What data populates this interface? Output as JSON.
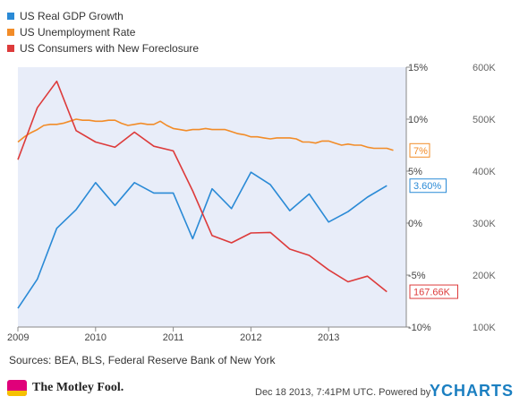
{
  "chart_data": {
    "type": "line",
    "x_ticks": [
      "2009",
      "2010",
      "2011",
      "2012",
      "2013"
    ],
    "x_range": [
      2009,
      2014.0
    ],
    "y_left_ticks": [
      "15%",
      "10%",
      "5%",
      "0%",
      "-5%",
      "-10%"
    ],
    "y_left_range": [
      -10,
      15
    ],
    "y_right_ticks": [
      "600K",
      "500K",
      "400K",
      "300K",
      "200K",
      "100K"
    ],
    "y_right_range": [
      100,
      600
    ],
    "grid": false,
    "legend_position": "top-left",
    "series": [
      {
        "name": "US Real GDP Growth",
        "color": "#2a8ad6",
        "axis": "left",
        "label": "3.60%",
        "x": [
          2009.0,
          2009.25,
          2009.5,
          2009.75,
          2010.0,
          2010.25,
          2010.5,
          2010.75,
          2011.0,
          2011.25,
          2011.5,
          2011.75,
          2012.0,
          2012.25,
          2012.5,
          2012.75,
          2013.0,
          2013.25,
          2013.5,
          2013.75
        ],
        "values": [
          -8.2,
          -5.4,
          -0.5,
          1.3,
          3.9,
          1.7,
          3.9,
          2.9,
          2.9,
          -1.5,
          3.3,
          1.4,
          4.9,
          3.7,
          1.2,
          2.8,
          0.1,
          1.1,
          2.5,
          3.6
        ]
      },
      {
        "name": "US Unemployment Rate",
        "color": "#f28c28",
        "axis": "left",
        "label": "7%",
        "x": [
          2009.0,
          2009.083,
          2009.167,
          2009.25,
          2009.333,
          2009.417,
          2009.5,
          2009.583,
          2009.667,
          2009.75,
          2009.833,
          2009.917,
          2010.0,
          2010.083,
          2010.167,
          2010.25,
          2010.333,
          2010.417,
          2010.5,
          2010.583,
          2010.667,
          2010.75,
          2010.833,
          2010.917,
          2011.0,
          2011.083,
          2011.167,
          2011.25,
          2011.333,
          2011.417,
          2011.5,
          2011.583,
          2011.667,
          2011.75,
          2011.833,
          2011.917,
          2012.0,
          2012.083,
          2012.167,
          2012.25,
          2012.333,
          2012.417,
          2012.5,
          2012.583,
          2012.667,
          2012.75,
          2012.833,
          2012.917,
          2013.0,
          2013.083,
          2013.167,
          2013.25,
          2013.333,
          2013.417,
          2013.5,
          2013.583,
          2013.667,
          2013.75,
          2013.833
        ],
        "values": [
          7.8,
          8.3,
          8.7,
          9.0,
          9.4,
          9.5,
          9.5,
          9.6,
          9.8,
          10.0,
          9.9,
          9.9,
          9.8,
          9.8,
          9.9,
          9.9,
          9.6,
          9.4,
          9.5,
          9.6,
          9.5,
          9.5,
          9.8,
          9.4,
          9.1,
          9.0,
          8.9,
          9.0,
          9.0,
          9.1,
          9.0,
          9.0,
          9.0,
          8.8,
          8.6,
          8.5,
          8.3,
          8.3,
          8.2,
          8.1,
          8.2,
          8.2,
          8.2,
          8.1,
          7.8,
          7.8,
          7.7,
          7.9,
          7.9,
          7.7,
          7.5,
          7.6,
          7.5,
          7.5,
          7.3,
          7.2,
          7.2,
          7.2,
          7.0
        ]
      },
      {
        "name": "US Consumers with New Foreclosure",
        "color": "#dd3b3b",
        "axis": "right",
        "label": "167.66K",
        "x": [
          2009.0,
          2009.25,
          2009.5,
          2009.75,
          2010.0,
          2010.25,
          2010.5,
          2010.75,
          2011.0,
          2011.25,
          2011.5,
          2011.75,
          2012.0,
          2012.25,
          2012.5,
          2012.75,
          2013.0,
          2013.25,
          2013.5,
          2013.75
        ],
        "values": [
          422,
          522,
          573,
          478,
          456,
          446,
          475,
          448,
          439,
          362,
          276,
          262,
          281,
          282,
          250,
          238,
          210,
          187,
          198,
          168
        ]
      }
    ]
  },
  "source_text": "Sources: BEA, BLS, Federal Reserve Bank of New York",
  "timestamp_text": "Dec 18 2013, 7:41PM UTC.  Powered by",
  "brand": {
    "logo_text": "The Motley Fool.",
    "powered_by": "YCHARTS"
  }
}
